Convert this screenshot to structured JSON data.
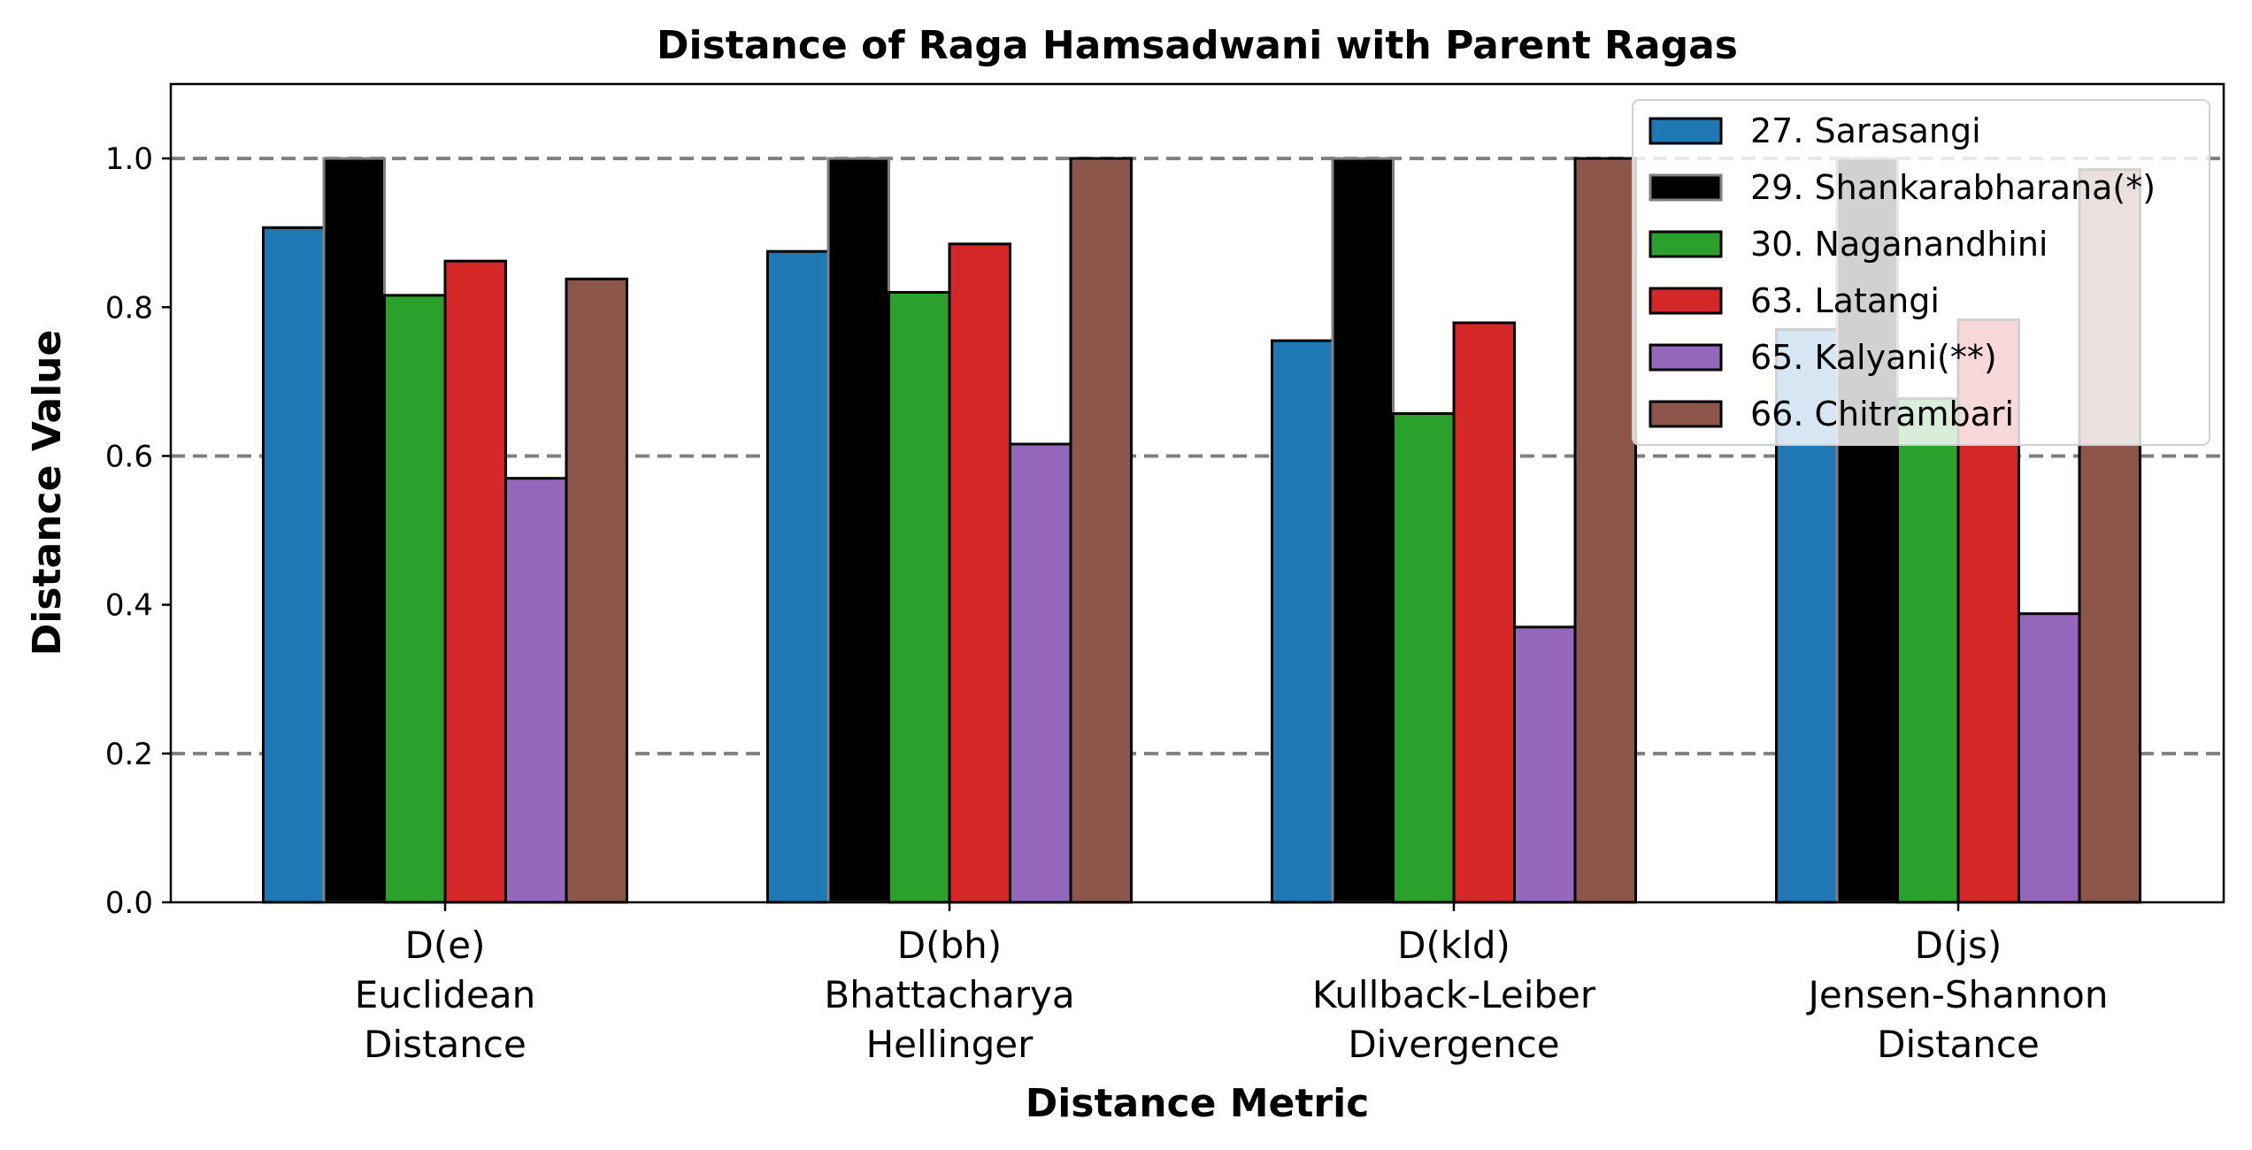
{
  "chart_data": {
    "type": "bar",
    "title": "Distance of Raga Hamsadwani with Parent Ragas",
    "xlabel": "Distance Metric",
    "ylabel": "Distance Value",
    "ylim": [
      0,
      1.1
    ],
    "yticks": [
      "0.0",
      "0.2",
      "0.4",
      "0.6",
      "0.8",
      "1.0"
    ],
    "ytick_values": [
      0,
      0.2,
      0.4,
      0.6,
      0.8,
      1.0
    ],
    "reference_lines": [
      0.2,
      0.6,
      1.0
    ],
    "legend_position": "upper-right",
    "categories": [
      [
        "D(e)",
        "Euclidean",
        "Distance"
      ],
      [
        "D(bh)",
        "Bhattacharya",
        "Hellinger"
      ],
      [
        "D(kld)",
        "Kullback-Leiber",
        "Divergence"
      ],
      [
        "D(js)",
        "Jensen-Shannon",
        "Distance"
      ]
    ],
    "series": [
      {
        "name": "27. Sarasangi",
        "color": "#1f77b4",
        "edge": "#000000",
        "values": [
          0.907,
          0.875,
          0.755,
          0.77
        ]
      },
      {
        "name": "29. Shankarabharana(*)",
        "color": "#000000",
        "edge": "#808080",
        "values": [
          1.0,
          1.0,
          1.0,
          1.0
        ]
      },
      {
        "name": "30. Naganandhini",
        "color": "#2ca02c",
        "edge": "#000000",
        "values": [
          0.816,
          0.82,
          0.657,
          0.677
        ]
      },
      {
        "name": "63. Latangi",
        "color": "#d62728",
        "edge": "#000000",
        "values": [
          0.862,
          0.885,
          0.779,
          0.783
        ]
      },
      {
        "name": "65. Kalyani(**)",
        "color": "#9467bd",
        "edge": "#000000",
        "values": [
          0.57,
          0.616,
          0.37,
          0.388
        ]
      },
      {
        "name": "66. Chitrambari",
        "color": "#8c564b",
        "edge": "#000000",
        "values": [
          0.838,
          1.0,
          1.0,
          0.985
        ]
      }
    ]
  }
}
